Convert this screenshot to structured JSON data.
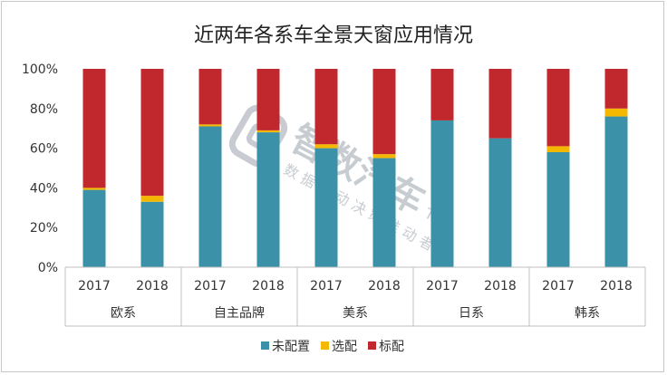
{
  "chart_data": {
    "type": "bar",
    "stacked": true,
    "title": "近两年各系车全景天窗应用情况",
    "categories": [
      "2017",
      "2018",
      "2017",
      "2018",
      "2017",
      "2018",
      "2017",
      "2018",
      "2017",
      "2018"
    ],
    "groups": [
      {
        "label": "欧系",
        "span": 2
      },
      {
        "label": "自主品牌",
        "span": 2
      },
      {
        "label": "美系",
        "span": 2
      },
      {
        "label": "日系",
        "span": 2
      },
      {
        "label": "韩系",
        "span": 2
      }
    ],
    "series": [
      {
        "name": "未配置",
        "color": "#3a91a8",
        "values": [
          39,
          33,
          71,
          68,
          60,
          55,
          74,
          65,
          58,
          76
        ]
      },
      {
        "name": "选配",
        "color": "#f5b800",
        "values": [
          1,
          3,
          1,
          1,
          2,
          2,
          0,
          0,
          3,
          4
        ]
      },
      {
        "name": "标配",
        "color": "#c0282d",
        "values": [
          60,
          64,
          28,
          31,
          38,
          43,
          26,
          35,
          39,
          20
        ]
      }
    ],
    "yticks": [
      "0%",
      "20%",
      "40%",
      "60%",
      "80%",
      "100%"
    ],
    "ylim": [
      0,
      100
    ],
    "legend_position": "bottom",
    "grid": false,
    "watermark": {
      "brand": "智数汽车",
      "slogan": "数 据 驱 动 决 策 推 动 者",
      "tm": "TM"
    }
  }
}
